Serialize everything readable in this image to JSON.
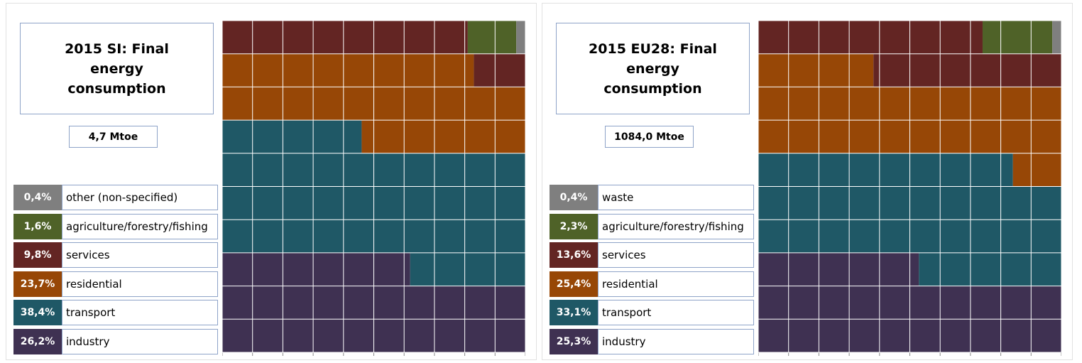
{
  "chart_data": [
    {
      "type": "waffle",
      "title": "2015 SI: Final energy consumption",
      "total": "4,7 Mtoe",
      "categories": [
        "other (non-specified)",
        "agriculture/forestry/fishing",
        "services",
        "residential",
        "transport",
        "industry"
      ],
      "values": [
        0.4,
        1.6,
        9.8,
        23.7,
        38.4,
        26.2
      ],
      "value_labels": [
        "0,4%",
        "1,6%",
        "9,8%",
        "23,7%",
        "38,4%",
        "26,2%"
      ],
      "colors": [
        "#7f7f7f",
        "#4f6228",
        "#632523",
        "#974706",
        "#1f5866",
        "#3f3152"
      ]
    },
    {
      "type": "waffle",
      "title": "2015 EU28: Final energy consumption",
      "total": "1084,0 Mtoe",
      "categories": [
        "waste",
        "agriculture/forestry/fishing",
        "services",
        "residential",
        "transport",
        "industry"
      ],
      "values": [
        0.4,
        2.3,
        13.6,
        25.4,
        33.1,
        25.3
      ],
      "value_labels": [
        "0,4%",
        "2,3%",
        "13,6%",
        "25,4%",
        "33,1%",
        "25,3%"
      ],
      "colors": [
        "#7f7f7f",
        "#4f6228",
        "#632523",
        "#974706",
        "#1f5866",
        "#3f3152"
      ]
    }
  ]
}
